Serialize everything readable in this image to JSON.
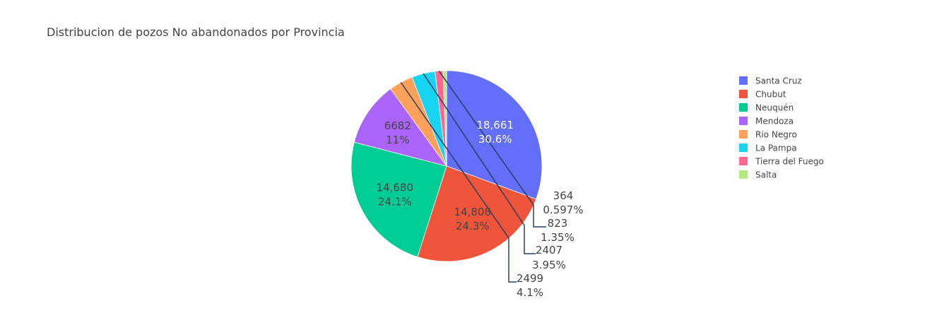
{
  "chart_data": {
    "type": "pie",
    "title": "Distribucion de pozos No abandonados por Provincia",
    "legend_position": "right",
    "slices": [
      {
        "label": "Santa Cruz",
        "value": 18661,
        "value_text": "18,661",
        "percent_text": "30.6%",
        "color": "#636efa"
      },
      {
        "label": "Chubut",
        "value": 14808,
        "value_text": "14,808",
        "percent_text": "24.3%",
        "color": "#ef553b"
      },
      {
        "label": "Neuquén",
        "value": 14680,
        "value_text": "14,680",
        "percent_text": "24.1%",
        "color": "#00cc96"
      },
      {
        "label": "Mendoza",
        "value": 6682,
        "value_text": "6682",
        "percent_text": "11%",
        "color": "#ab63fa"
      },
      {
        "label": "Rio Negro",
        "value": 2499,
        "value_text": "2499",
        "percent_text": "4.1%",
        "color": "#ffa15a"
      },
      {
        "label": "La Pampa",
        "value": 2407,
        "value_text": "2407",
        "percent_text": "3.95%",
        "color": "#19d3f3"
      },
      {
        "label": "Tierra del Fuego",
        "value": 823,
        "value_text": "823",
        "percent_text": "1.35%",
        "color": "#ff6692"
      },
      {
        "label": "Salta",
        "value": 364,
        "value_text": "364",
        "percent_text": "0.597%",
        "color": "#b6e880"
      }
    ]
  }
}
